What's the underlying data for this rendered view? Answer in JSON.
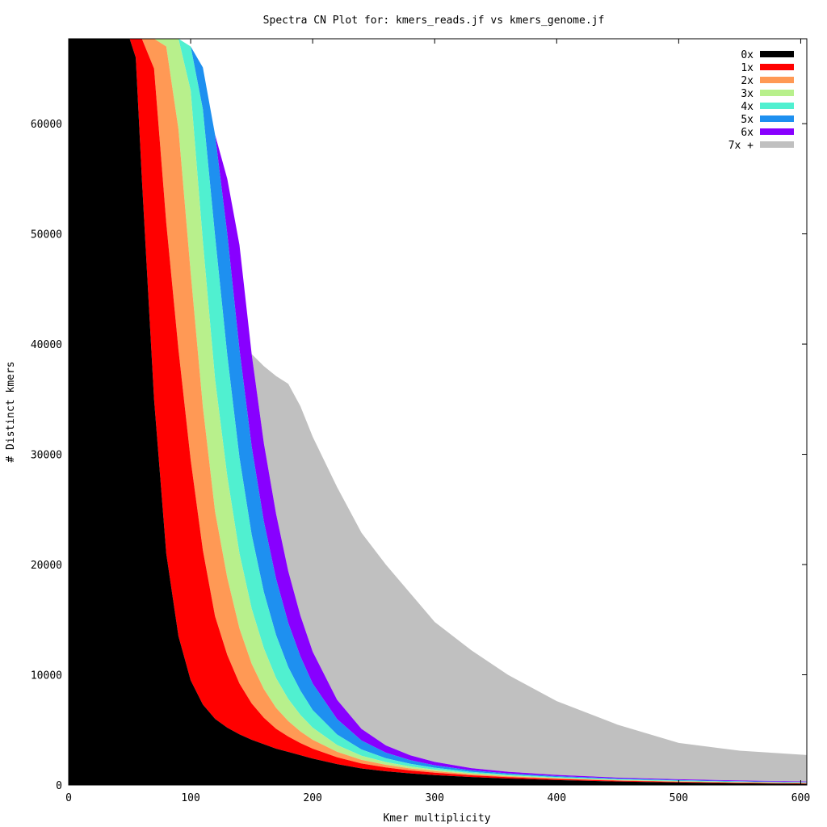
{
  "chart_data": {
    "type": "area",
    "title": "Spectra CN Plot for: kmers_reads.jf  vs kmers_genome.jf",
    "xlabel": "Kmer multiplicity",
    "ylabel": "# Distinct kmers",
    "xlim": [
      0,
      605
    ],
    "ylim": [
      0,
      67700
    ],
    "x_ticks": [
      0,
      100,
      200,
      300,
      400,
      500,
      600
    ],
    "y_ticks": [
      0,
      10000,
      20000,
      30000,
      40000,
      50000,
      60000
    ],
    "stacked": true,
    "legend_position": "top-right",
    "x": [
      0,
      20,
      40,
      50,
      55,
      60,
      70,
      80,
      90,
      100,
      110,
      120,
      130,
      140,
      150,
      160,
      170,
      180,
      190,
      200,
      220,
      240,
      260,
      280,
      300,
      330,
      360,
      400,
      450,
      500,
      550,
      605
    ],
    "series": [
      {
        "name": "0x",
        "color": "#000000",
        "values": [
          70000,
          70000,
          70000,
          70000,
          66000,
          55000,
          35000,
          21000,
          13500,
          9500,
          7300,
          6000,
          5200,
          4600,
          4100,
          3700,
          3300,
          3000,
          2700,
          2400,
          1900,
          1500,
          1250,
          1050,
          900,
          720,
          590,
          450,
          320,
          230,
          160,
          100
        ]
      },
      {
        "name": "1x",
        "color": "#ff0000",
        "values": [
          0,
          0,
          0,
          0,
          4000,
          15000,
          30000,
          30000,
          26000,
          20000,
          14000,
          9300,
          6600,
          4600,
          3300,
          2400,
          1800,
          1400,
          1100,
          900,
          620,
          450,
          340,
          270,
          220,
          160,
          125,
          95,
          70,
          55,
          45,
          40
        ]
      },
      {
        "name": "2x",
        "color": "#ff9955",
        "values": [
          0,
          0,
          0,
          0,
          0,
          0,
          5000,
          16000,
          20000,
          17000,
          13000,
          9500,
          7000,
          5000,
          3600,
          2600,
          1900,
          1400,
          1050,
          800,
          490,
          330,
          240,
          180,
          140,
          100,
          80,
          60,
          45,
          38,
          33,
          30
        ]
      },
      {
        "name": "3x",
        "color": "#b8f08c",
        "values": [
          0,
          0,
          0,
          0,
          0,
          0,
          0,
          3000,
          10500,
          16500,
          15000,
          12000,
          9200,
          6800,
          5000,
          3700,
          2700,
          2000,
          1500,
          1100,
          620,
          380,
          250,
          180,
          135,
          95,
          75,
          58,
          45,
          38,
          34,
          30
        ]
      },
      {
        "name": "4x",
        "color": "#50f0d0",
        "values": [
          0,
          0,
          0,
          0,
          0,
          0,
          0,
          0,
          0,
          4000,
          12000,
          13000,
          11000,
          8700,
          6700,
          5100,
          3900,
          2900,
          2200,
          1600,
          950,
          560,
          350,
          240,
          170,
          115,
          85,
          65,
          50,
          42,
          36,
          32
        ]
      },
      {
        "name": "5x",
        "color": "#1e90f0",
        "values": [
          0,
          0,
          0,
          0,
          0,
          0,
          0,
          0,
          0,
          0,
          3800,
          9200,
          11000,
          9800,
          8000,
          6400,
          5100,
          4000,
          3100,
          2400,
          1400,
          820,
          500,
          330,
          220,
          140,
          100,
          75,
          57,
          47,
          40,
          35
        ]
      },
      {
        "name": "6x",
        "color": "#8800ff",
        "values": [
          0,
          0,
          0,
          0,
          0,
          0,
          0,
          0,
          0,
          0,
          0,
          0,
          5000,
          9500,
          8400,
          7100,
          5900,
          4700,
          3700,
          2900,
          1750,
          1050,
          660,
          440,
          310,
          200,
          145,
          110,
          85,
          72,
          62,
          55
        ]
      },
      {
        "name": "7x +",
        "color": "#c0c0c0",
        "values": [
          0,
          0,
          0,
          0,
          0,
          0,
          0,
          0,
          0,
          0,
          0,
          0,
          0,
          0,
          0,
          7000,
          12500,
          17000,
          19000,
          19500,
          19300,
          17800,
          16400,
          14700,
          12700,
          10700,
          8800,
          6700,
          4800,
          3300,
          2700,
          2400
        ]
      }
    ]
  }
}
